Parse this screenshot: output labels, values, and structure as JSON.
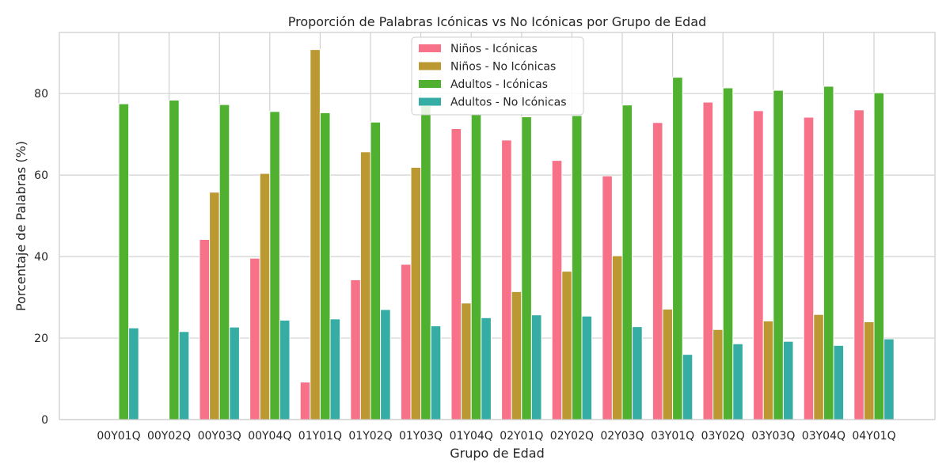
{
  "chart_data": {
    "type": "bar",
    "title": "Proporción de Palabras Icónicas vs No Icónicas por Grupo de Edad",
    "xlabel": "Grupo de Edad",
    "ylabel": "Porcentaje de Palabras (%)",
    "ylim": [
      0,
      95
    ],
    "yticks": [
      0,
      20,
      40,
      60,
      80
    ],
    "grid": true,
    "legend_position": "top-center",
    "categories": [
      "00Y01Q",
      "00Y02Q",
      "00Y03Q",
      "00Y04Q",
      "01Y01Q",
      "01Y02Q",
      "01Y03Q",
      "01Y04Q",
      "02Y01Q",
      "02Y02Q",
      "02Y03Q",
      "03Y01Q",
      "03Y02Q",
      "03Y03Q",
      "03Y04Q",
      "04Y01Q"
    ],
    "series": [
      {
        "name": "Niños - Icónicas",
        "color": "#f77189",
        "values": [
          0,
          0,
          44.2,
          39.6,
          9.2,
          34.3,
          38.1,
          71.4,
          68.6,
          63.6,
          59.8,
          72.9,
          77.9,
          75.8,
          74.2,
          76.0
        ]
      },
      {
        "name": "Niños - No Icónicas",
        "color": "#bb9832",
        "values": [
          0,
          0,
          55.8,
          60.4,
          90.8,
          65.7,
          61.9,
          28.6,
          31.4,
          36.4,
          40.2,
          27.1,
          22.1,
          24.2,
          25.8,
          24.0
        ]
      },
      {
        "name": "Adultos - Icónicas",
        "color": "#50b131",
        "values": [
          77.5,
          78.4,
          77.3,
          75.6,
          75.3,
          73.0,
          77.0,
          75.0,
          74.3,
          74.6,
          77.2,
          84.0,
          81.4,
          80.8,
          81.8,
          80.2
        ]
      },
      {
        "name": "Adultos - No Icónicas",
        "color": "#36ada4",
        "values": [
          22.5,
          21.6,
          22.7,
          24.4,
          24.7,
          27.0,
          23.0,
          25.0,
          25.7,
          25.4,
          22.8,
          16.0,
          18.6,
          19.2,
          18.2,
          19.8
        ]
      }
    ]
  }
}
